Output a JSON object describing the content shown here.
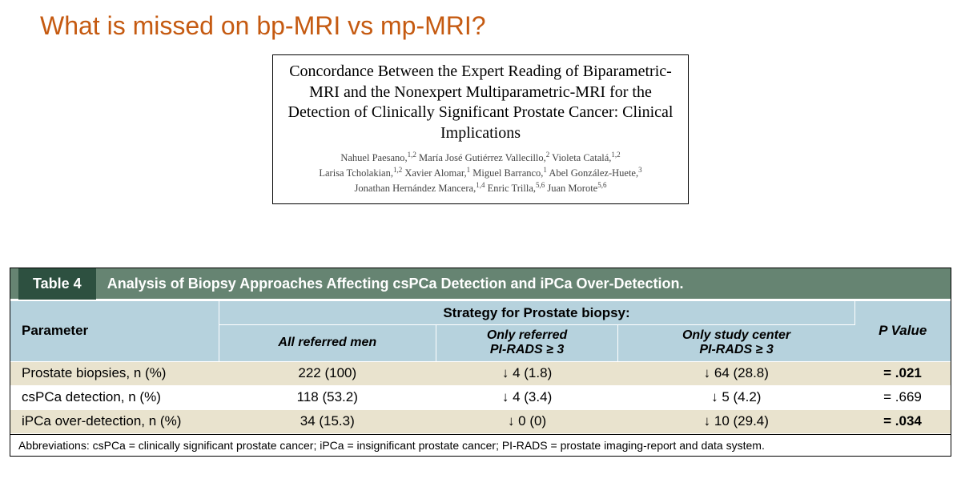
{
  "colors": {
    "title": "#c55a11",
    "table_header_bg": "#668472",
    "table_label_bg": "#2d5040",
    "subhead_bg": "#b6d2dd",
    "row_stripe": "#e9e3ce"
  },
  "slide_title": "What is missed on bp-MRI vs mp-MRI?",
  "citation": {
    "title": "Concordance Between the Expert Reading of Biparametric-MRI and the Nonexpert Multiparametric-MRI for the Detection of Clinically Significant Prostate Cancer: Clinical Implications",
    "authors_html": "Nahuel Paesano,<sup>1,2</sup> María José Gutiérrez Vallecillo,<sup>2</sup> Violeta Catalá,<sup>1,2</sup><br>Larisa Tcholakian,<sup>1,2</sup> Xavier Alomar,<sup>1</sup> Miguel Barranco,<sup>1</sup> Abel González-Huete,<sup>3</sup><br>Jonathan Hernández Mancera,<sup>1,4</sup> Enric Trilla,<sup>5,6</sup> Juan Morote<sup>5,6</sup>"
  },
  "table4": {
    "label": "Table 4",
    "caption": "Analysis of Biopsy Approaches Affecting csPCa Detection and iPCa Over-Detection.",
    "col_parameter": "Parameter",
    "col_strategy": "Strategy for Prostate biopsy:",
    "col_pvalue": "P Value",
    "subcols": [
      "All referred men",
      "Only referred<br>PI-RADS ≥ 3",
      "Only study center<br>PI-RADS ≥ 3"
    ],
    "rows": [
      {
        "param": "Prostate biopsies, n (%)",
        "c1": "222 (100)",
        "c2": "↓ 4 (1.8)",
        "c3": "↓ 64 (28.8)",
        "p": "= .021",
        "bold_p": true
      },
      {
        "param": "csPCa detection, n (%)",
        "c1": "118 (53.2)",
        "c2": "↓ 4 (3.4)",
        "c3": "↓ 5 (4.2)",
        "p": "= .669",
        "bold_p": false
      },
      {
        "param": "iPCa over-detection, n (%)",
        "c1": "34 (15.3)",
        "c2": "↓ 0 (0)",
        "c3": "↓ 10 (29.4)",
        "p": "= .034",
        "bold_p": true
      }
    ],
    "abbreviations": "Abbreviations: csPCa = clinically significant prostate cancer; iPCa = insignificant prostate cancer; PI-RADS = prostate imaging-report and data system."
  }
}
